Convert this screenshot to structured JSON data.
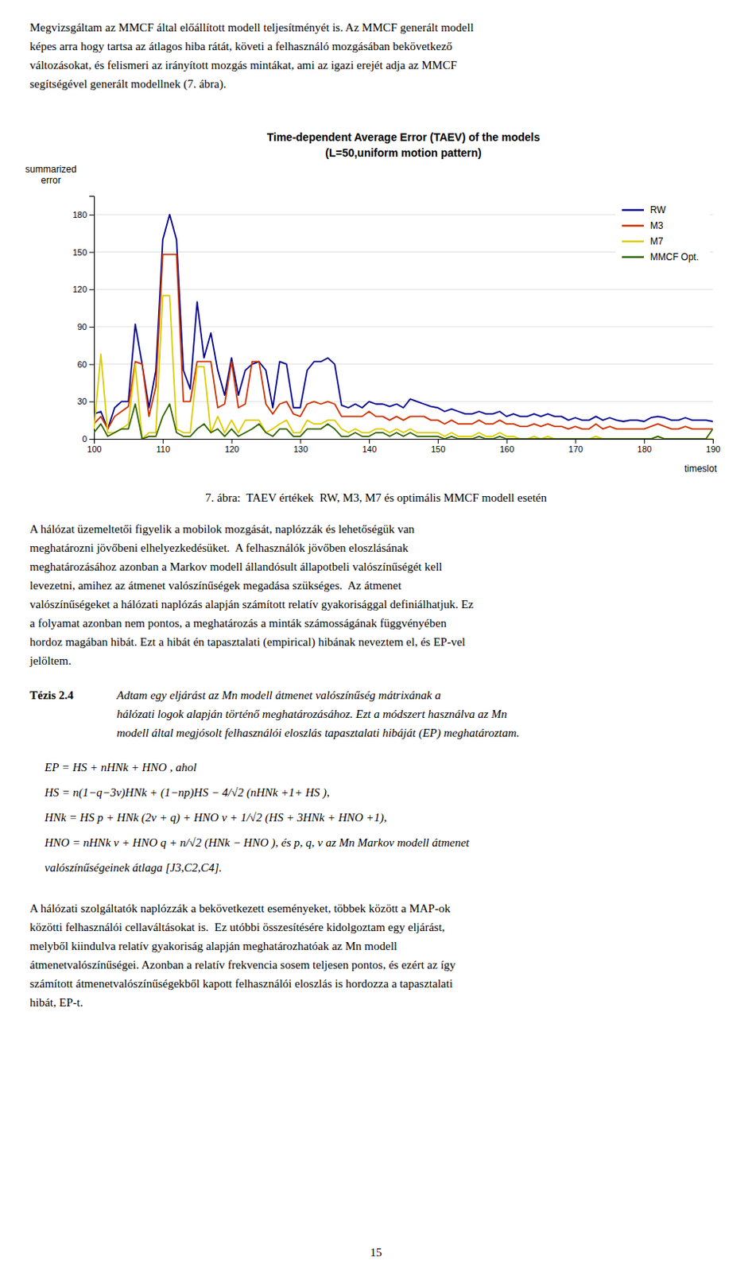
{
  "chart_data": {
    "type": "line",
    "title": "Time-dependent Average Error (TAEV) of the models",
    "subtitle": "(L=50,uniform motion pattern)",
    "y_label": "summarized\nerror",
    "x_label": "timeslot",
    "x": [
      100,
      101,
      102,
      103,
      104,
      105,
      106,
      107,
      108,
      109,
      110,
      111,
      112,
      113,
      114,
      115,
      116,
      117,
      118,
      119,
      120,
      121,
      122,
      123,
      124,
      125,
      126,
      127,
      128,
      129,
      130,
      131,
      132,
      133,
      134,
      135,
      136,
      137,
      138,
      139,
      140,
      141,
      142,
      143,
      144,
      145,
      146,
      147,
      148,
      149,
      150,
      151,
      152,
      153,
      154,
      155,
      156,
      157,
      158,
      159,
      160,
      161,
      162,
      163,
      164,
      165,
      166,
      167,
      168,
      169,
      170,
      171,
      172,
      173,
      174,
      175,
      176,
      177,
      178,
      179,
      180,
      181,
      182,
      183,
      184,
      185,
      186,
      187,
      188,
      189,
      190
    ],
    "xlim": [
      100,
      190
    ],
    "xticks": [
      100,
      110,
      120,
      130,
      140,
      150,
      160,
      170,
      180,
      190
    ],
    "ylim": [
      0,
      195
    ],
    "yticks": [
      0,
      30,
      60,
      90,
      120,
      150,
      180
    ],
    "grid": true,
    "legend": "upper right",
    "series": [
      {
        "name": "RW",
        "color": "#00008B",
        "values": [
          20,
          22,
          8,
          25,
          30,
          30,
          92,
          60,
          25,
          55,
          160,
          180,
          160,
          55,
          40,
          110,
          65,
          85,
          55,
          35,
          65,
          35,
          55,
          60,
          62,
          55,
          25,
          62,
          60,
          25,
          25,
          55,
          62,
          62,
          65,
          60,
          27,
          25,
          28,
          25,
          30,
          28,
          28,
          26,
          28,
          25,
          32,
          30,
          28,
          26,
          25,
          22,
          24,
          22,
          20,
          20,
          22,
          20,
          20,
          22,
          18,
          20,
          18,
          18,
          20,
          18,
          20,
          18,
          18,
          15,
          17,
          15,
          15,
          18,
          15,
          17,
          15,
          14,
          15,
          15,
          14,
          17,
          18,
          17,
          15,
          15,
          17,
          15,
          15,
          15,
          14
        ]
      },
      {
        "name": "M3",
        "color": "#CC3300",
        "values": [
          12,
          18,
          8,
          18,
          22,
          26,
          62,
          60,
          18,
          42,
          148,
          148,
          148,
          30,
          30,
          62,
          62,
          62,
          25,
          28,
          62,
          25,
          28,
          62,
          62,
          28,
          20,
          28,
          30,
          20,
          18,
          28,
          30,
          28,
          30,
          28,
          18,
          18,
          18,
          18,
          22,
          18,
          18,
          15,
          18,
          15,
          18,
          18,
          18,
          15,
          15,
          12,
          15,
          12,
          12,
          12,
          15,
          12,
          12,
          15,
          12,
          12,
          10,
          10,
          12,
          10,
          12,
          10,
          10,
          8,
          10,
          8,
          8,
          12,
          8,
          10,
          8,
          8,
          8,
          8,
          8,
          10,
          12,
          10,
          8,
          8,
          10,
          8,
          8,
          8,
          8
        ]
      },
      {
        "name": "M7",
        "color": "#DDCC00",
        "values": [
          8,
          68,
          5,
          5,
          8,
          12,
          60,
          0,
          5,
          5,
          115,
          115,
          8,
          5,
          5,
          58,
          58,
          5,
          18,
          5,
          15,
          5,
          15,
          15,
          15,
          5,
          8,
          12,
          15,
          5,
          5,
          15,
          12,
          12,
          15,
          15,
          8,
          5,
          8,
          5,
          5,
          8,
          8,
          5,
          8,
          5,
          8,
          5,
          5,
          5,
          5,
          2,
          5,
          2,
          2,
          2,
          5,
          2,
          2,
          5,
          2,
          2,
          0,
          0,
          2,
          0,
          2,
          0,
          0,
          0,
          0,
          0,
          0,
          2,
          0,
          0,
          0,
          0,
          0,
          0,
          0,
          0,
          2,
          0,
          0,
          0,
          0,
          0,
          0,
          0,
          0
        ]
      },
      {
        "name": "MMCF Opt.",
        "color": "#336600",
        "values": [
          5,
          12,
          2,
          5,
          8,
          8,
          28,
          0,
          2,
          2,
          18,
          28,
          5,
          2,
          2,
          8,
          12,
          5,
          8,
          2,
          8,
          2,
          5,
          8,
          12,
          5,
          2,
          8,
          8,
          2,
          2,
          8,
          8,
          8,
          12,
          8,
          2,
          2,
          5,
          2,
          2,
          5,
          5,
          2,
          5,
          2,
          5,
          2,
          2,
          2,
          2,
          0,
          2,
          0,
          0,
          0,
          2,
          0,
          0,
          2,
          0,
          0,
          0,
          0,
          0,
          0,
          0,
          0,
          0,
          0,
          0,
          0,
          0,
          0,
          0,
          0,
          0,
          0,
          0,
          0,
          0,
          0,
          2,
          0,
          0,
          0,
          0,
          0,
          0,
          0,
          8
        ]
      }
    ]
  },
  "page_text": {
    "intro": [
      "Megvizsgáltam az MMCF által előállított modell teljesítményét is. Az MMCF generált modell",
      "képes arra hogy tartsa az átlagos hiba rátát, követi a felhasználó mozgásában bekövetkező",
      "változásokat, és felismeri az irányított mozgás mintákat, ami az igazi erejét adja az MMCF",
      "segítségével generált modellnek (7. ábra)."
    ],
    "caption": "7. ábra:  TAEV értékek  RW, M3, M7 és optimális MMCF modell esetén",
    "body": [
      "A hálózat üzemeltetői figyelik a mobilok mozgását, naplózzák és lehetőségük van",
      "meghatározni jövőbeni elhelyezkedésüket.  A felhasználók jövőben eloszlásának",
      "meghatározásához azonban a Markov modell állandósult állapotbeli valószínűségét kell",
      "levezetni, amihez az átmenet valószínűségek megadása szükséges.  Az átmenet",
      "valószínűségeket a hálózati naplózás alapján számított relatív gyakorisággal definiálhatjuk. Ez",
      "a folyamat azonban nem pontos, a meghatározás a minták számosságának függvényében",
      "hordoz magában hibát. Ezt a hibát én tapasztalati (empirical) hibának neveztem el, és EP-vel",
      "jelöltem."
    ],
    "thesis_heading": "Tézis 2.4",
    "thesis": [
      "Adtam egy eljárást az Mn modell átmenet valószínűség mátrixának a",
      "hálózati logok alapján történő meghatározásához. Ezt a módszert használva az Mn",
      "modell által megjósolt felhasználói eloszlás tapasztalati hibáját (EP) meghatároztam."
    ],
    "equations": [
      "EP = HS + nHNk + HNO , ahol",
      "HS = n(1−q−3v)HNk + (1−np)HS − 4/√2 (nHNk +1+ HS ),",
      "HNk = HS p + HNk (2v + q) + HNO v + 1/√2 (HS + 3HNk + HNO +1),",
      "HNO = nHNk v + HNO q + n/√2 (HNk − HNO ), és p, q, v az Mn Markov modell átmenet",
      "valószínűségeinek átlaga [J3,C2,C4]."
    ],
    "closing": [
      "A hálózati szolgáltatók naplózzák a bekövetkezett eseményeket, többek között a MAP-ok",
      "közötti felhasználói cellaváltásokat is.  Ez utóbbi összesítésére kidolgoztam egy eljárást,",
      "melyből kiindulva relatív gyakoriság alapján meghatározhatóak az Mn modell",
      "átmenetvalószínűségei. Azonban a relatív frekvencia sosem teljesen pontos, és ezért az így",
      "számított átmenetvalószínűségekből kapott felhasználói eloszlás is hordozza a tapasztalati",
      "hibát, EP-t."
    ],
    "page_number": "15"
  }
}
